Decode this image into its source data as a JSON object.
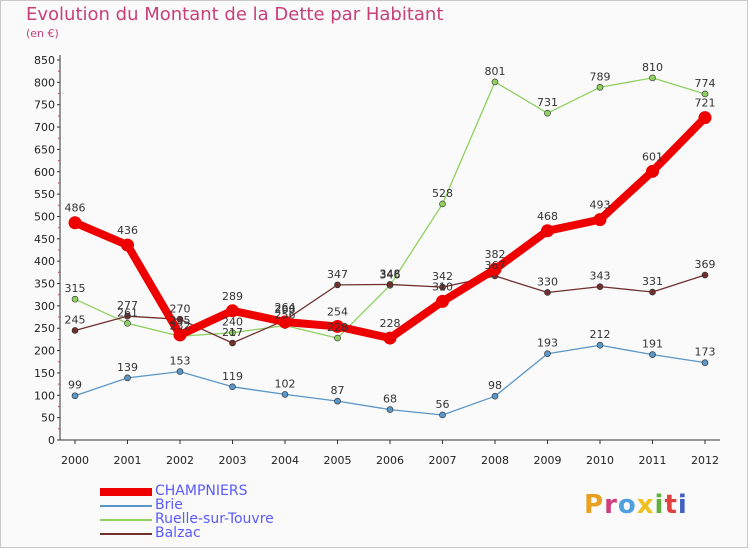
{
  "title": "Evolution du Montant de la Dette par Habitant",
  "subtitle": "(en €)",
  "logo_text": "Proxiti",
  "colors": {
    "title": "#c8407a",
    "legend_text": "#5a5aff",
    "logo_letters": [
      "#e8a020",
      "#d04080",
      "#50a0e0",
      "#f0c020",
      "#60b040",
      "#e04040",
      "#4060c0"
    ]
  },
  "chart_data": {
    "type": "line",
    "title": "Evolution du Montant de la Dette par Habitant",
    "subtitle": "(en €)",
    "xlabel": "",
    "ylabel": "",
    "categories": [
      "2000",
      "2001",
      "2002",
      "2003",
      "2004",
      "2005",
      "2006",
      "2007",
      "2008",
      "2009",
      "2010",
      "2011",
      "2012"
    ],
    "ylim": [
      0,
      850
    ],
    "yticks": [
      0,
      50,
      100,
      150,
      200,
      250,
      300,
      350,
      400,
      450,
      500,
      550,
      600,
      650,
      700,
      750,
      800,
      850
    ],
    "grid": false,
    "legend_position": "bottom-left",
    "series": [
      {
        "name": "CHAMPNIERS",
        "color": "#ee0000",
        "thick": true,
        "values": [
          486,
          436,
          235,
          289,
          264,
          254,
          228,
          310,
          382,
          468,
          493,
          601,
          721
        ],
        "labels": [
          "486",
          "436",
          "235",
          "289",
          "264",
          "254",
          "228",
          "310",
          "382",
          "468",
          "493",
          "601",
          "721"
        ]
      },
      {
        "name": "Brie",
        "color": "#5a96c8",
        "thick": false,
        "values": [
          99,
          139,
          153,
          119,
          102,
          87,
          68,
          56,
          98,
          193,
          212,
          191,
          173
        ],
        "labels": [
          "99",
          "139",
          "153",
          "119",
          "102",
          "87",
          "68",
          "56",
          "98",
          "193",
          "212",
          "191",
          "173"
        ]
      },
      {
        "name": "Ruelle-sur-Touvre",
        "color": "#8fd060",
        "thick": false,
        "values": [
          315,
          261,
          232,
          240,
          256,
          228,
          346,
          528,
          801,
          731,
          789,
          810,
          774
        ],
        "labels": [
          "315",
          "261",
          "232",
          "240",
          "256",
          "228",
          "346",
          "528",
          "801",
          "731",
          "789",
          "810",
          "774"
        ]
      },
      {
        "name": "Balzac",
        "color": "#703030",
        "thick": false,
        "values": [
          245,
          277,
          270,
          217,
          268,
          347,
          348,
          342,
          367,
          330,
          343,
          331,
          369
        ],
        "labels": [
          "245",
          "277",
          "270",
          "217",
          "268",
          "347",
          "348",
          "342",
          "367",
          "330",
          "343",
          "331",
          "369"
        ]
      }
    ]
  }
}
